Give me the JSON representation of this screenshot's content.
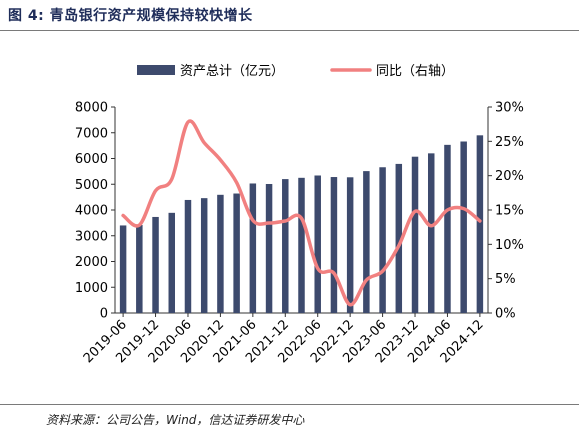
{
  "figure": {
    "title": "图 4:  青岛银行资产规模保持较快增长",
    "source": "资料来源：公司公告，Wind，信达证券研发中心"
  },
  "colors": {
    "bar": "#3d4a6d",
    "line": "#f18080"
  },
  "chart_data": {
    "type": "bar",
    "x": [
      "2019-06",
      "2019-09",
      "2019-12",
      "2020-03",
      "2020-06",
      "2020-09",
      "2020-12",
      "2021-03",
      "2021-06",
      "2021-09",
      "2021-12",
      "2022-03",
      "2022-06",
      "2022-09",
      "2022-12",
      "2023-03",
      "2023-06",
      "2023-09",
      "2023-12",
      "2024-03",
      "2024-06",
      "2024-09",
      "2024-12"
    ],
    "xtick_labels": [
      "2019-06",
      "2019-12",
      "2020-06",
      "2020-12",
      "2021-06",
      "2021-12",
      "2022-06",
      "2022-12",
      "2023-06",
      "2023-12",
      "2024-06",
      "2024-12"
    ],
    "series": [
      {
        "name": "资产总计（亿元）",
        "type": "bar",
        "axis": "left",
        "values": [
          3400,
          3420,
          3730,
          3890,
          4390,
          4460,
          4590,
          4640,
          5030,
          5010,
          5200,
          5250,
          5340,
          5280,
          5270,
          5510,
          5660,
          5790,
          6070,
          6200,
          6530,
          6660,
          6900
        ]
      },
      {
        "name": "同比（右轴）",
        "type": "line",
        "axis": "right",
        "values": [
          14.2,
          12.8,
          17.8,
          19.5,
          27.8,
          24.8,
          22.3,
          19.0,
          13.5,
          13.1,
          13.4,
          13.8,
          6.5,
          5.8,
          1.2,
          4.8,
          6.1,
          9.8,
          14.8,
          12.7,
          15.0,
          15.2,
          13.4
        ]
      }
    ],
    "y_left": {
      "min": 0,
      "max": 8000,
      "ticks": [
        "0",
        "1000",
        "2000",
        "3000",
        "4000",
        "5000",
        "6000",
        "7000",
        "8000"
      ]
    },
    "y_right": {
      "min": 0,
      "max": 30,
      "ticks": [
        "0%",
        "5%",
        "10%",
        "15%",
        "20%",
        "25%",
        "30%"
      ]
    },
    "legend_position": "top"
  }
}
